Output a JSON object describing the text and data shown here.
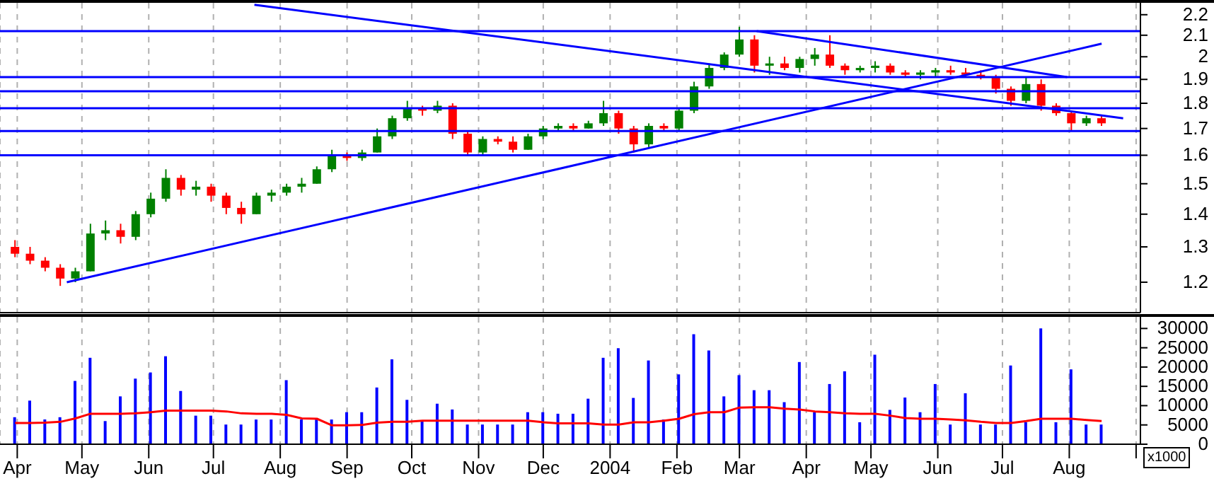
{
  "chart_data": [
    {
      "type": "candlestick",
      "log": true,
      "grid": "x",
      "tick_labels": "y",
      "xlim": [
        "2003-03-24",
        "2004-09-03"
      ],
      "xticks": [
        {
          "value": "2003-04-01",
          "label": null
        },
        {
          "value": "2003-05-01",
          "label": null
        },
        {
          "value": "2003-06-01",
          "label": null
        },
        {
          "value": "2003-07-01",
          "label": null
        },
        {
          "value": "2003-08-01",
          "label": null
        },
        {
          "value": "2003-09-01",
          "label": null
        },
        {
          "value": "2003-10-01",
          "label": null
        },
        {
          "value": "2003-11-01",
          "label": null
        },
        {
          "value": "2003-12-01",
          "label": null
        },
        {
          "value": "2004-01-01",
          "label": null
        },
        {
          "value": "2004-02-01",
          "label": null
        },
        {
          "value": "2004-03-01",
          "label": null
        },
        {
          "value": "2004-04-01",
          "label": null
        },
        {
          "value": "2004-05-01",
          "label": null
        },
        {
          "value": "2004-06-01",
          "label": null
        },
        {
          "value": "2004-07-01",
          "label": null
        },
        {
          "value": "2004-08-01",
          "label": null
        },
        {
          "value": "2004-09-01",
          "label": null
        }
      ],
      "ylim": [
        1.12,
        2.26
      ],
      "yticks": [
        1.2,
        1.3,
        1.4,
        1.5,
        1.6,
        1.7,
        1.8,
        1.9,
        2.0,
        2.1,
        2.2
      ],
      "x": [
        "2003-03-31",
        "2003-04-07",
        "2003-04-14",
        "2003-04-21",
        "2003-04-28",
        "2003-05-05",
        "2003-05-12",
        "2003-05-19",
        "2003-05-26",
        "2003-06-02",
        "2003-06-09",
        "2003-06-16",
        "2003-06-23",
        "2003-06-30",
        "2003-07-07",
        "2003-07-14",
        "2003-07-21",
        "2003-07-28",
        "2003-08-04",
        "2003-08-11",
        "2003-08-18",
        "2003-08-25",
        "2003-09-01",
        "2003-09-08",
        "2003-09-15",
        "2003-09-22",
        "2003-09-29",
        "2003-10-06",
        "2003-10-13",
        "2003-10-20",
        "2003-10-27",
        "2003-11-03",
        "2003-11-10",
        "2003-11-17",
        "2003-11-24",
        "2003-12-01",
        "2003-12-08",
        "2003-12-15",
        "2003-12-22",
        "2003-12-29",
        "2004-01-05",
        "2004-01-12",
        "2004-01-19",
        "2004-01-26",
        "2004-02-02",
        "2004-02-09",
        "2004-02-16",
        "2004-02-23",
        "2004-03-01",
        "2004-03-08",
        "2004-03-15",
        "2004-03-22",
        "2004-03-29",
        "2004-04-05",
        "2004-04-12",
        "2004-04-19",
        "2004-04-26",
        "2004-05-03",
        "2004-05-10",
        "2004-05-17",
        "2004-05-24",
        "2004-05-31",
        "2004-06-07",
        "2004-06-14",
        "2004-06-21",
        "2004-06-28",
        "2004-07-05",
        "2004-07-12",
        "2004-07-19",
        "2004-07-26",
        "2004-08-02",
        "2004-08-09",
        "2004-08-16"
      ],
      "ohlc": [
        [
          1.3,
          1.32,
          1.27,
          1.28
        ],
        [
          1.28,
          1.3,
          1.25,
          1.26
        ],
        [
          1.26,
          1.27,
          1.23,
          1.24
        ],
        [
          1.24,
          1.25,
          1.19,
          1.21
        ],
        [
          1.21,
          1.24,
          1.2,
          1.23
        ],
        [
          1.23,
          1.37,
          1.23,
          1.34
        ],
        [
          1.34,
          1.38,
          1.32,
          1.35
        ],
        [
          1.35,
          1.37,
          1.31,
          1.33
        ],
        [
          1.33,
          1.41,
          1.32,
          1.4
        ],
        [
          1.4,
          1.47,
          1.39,
          1.45
        ],
        [
          1.45,
          1.55,
          1.44,
          1.52
        ],
        [
          1.52,
          1.53,
          1.46,
          1.48
        ],
        [
          1.48,
          1.51,
          1.46,
          1.49
        ],
        [
          1.49,
          1.5,
          1.44,
          1.46
        ],
        [
          1.46,
          1.47,
          1.4,
          1.42
        ],
        [
          1.42,
          1.44,
          1.37,
          1.4
        ],
        [
          1.4,
          1.47,
          1.4,
          1.46
        ],
        [
          1.46,
          1.48,
          1.44,
          1.47
        ],
        [
          1.47,
          1.5,
          1.46,
          1.49
        ],
        [
          1.49,
          1.52,
          1.47,
          1.5
        ],
        [
          1.5,
          1.56,
          1.5,
          1.55
        ],
        [
          1.55,
          1.62,
          1.54,
          1.6
        ],
        [
          1.6,
          1.61,
          1.58,
          1.59
        ],
        [
          1.59,
          1.62,
          1.58,
          1.61
        ],
        [
          1.61,
          1.7,
          1.61,
          1.67
        ],
        [
          1.67,
          1.75,
          1.66,
          1.74
        ],
        [
          1.74,
          1.81,
          1.73,
          1.78
        ],
        [
          1.78,
          1.79,
          1.75,
          1.77
        ],
        [
          1.77,
          1.81,
          1.76,
          1.79
        ],
        [
          1.79,
          1.8,
          1.66,
          1.68
        ],
        [
          1.68,
          1.69,
          1.6,
          1.61
        ],
        [
          1.61,
          1.67,
          1.6,
          1.66
        ],
        [
          1.66,
          1.67,
          1.64,
          1.65
        ],
        [
          1.65,
          1.67,
          1.61,
          1.62
        ],
        [
          1.62,
          1.68,
          1.62,
          1.67
        ],
        [
          1.67,
          1.71,
          1.66,
          1.7
        ],
        [
          1.7,
          1.72,
          1.69,
          1.71
        ],
        [
          1.71,
          1.72,
          1.69,
          1.7
        ],
        [
          1.7,
          1.73,
          1.7,
          1.72
        ],
        [
          1.72,
          1.81,
          1.71,
          1.76
        ],
        [
          1.76,
          1.77,
          1.68,
          1.7
        ],
        [
          1.7,
          1.71,
          1.61,
          1.64
        ],
        [
          1.64,
          1.72,
          1.63,
          1.71
        ],
        [
          1.71,
          1.72,
          1.69,
          1.7
        ],
        [
          1.7,
          1.78,
          1.69,
          1.77
        ],
        [
          1.77,
          1.89,
          1.76,
          1.87
        ],
        [
          1.87,
          1.97,
          1.86,
          1.95
        ],
        [
          1.95,
          2.02,
          1.94,
          2.01
        ],
        [
          2.01,
          2.14,
          2.0,
          2.08
        ],
        [
          2.08,
          2.1,
          1.93,
          1.96
        ],
        [
          1.96,
          2.0,
          1.92,
          1.97
        ],
        [
          1.97,
          2.0,
          1.94,
          1.95
        ],
        [
          1.95,
          2.0,
          1.93,
          1.99
        ],
        [
          1.99,
          2.04,
          1.96,
          2.01
        ],
        [
          2.01,
          2.1,
          1.95,
          1.96
        ],
        [
          1.96,
          1.97,
          1.92,
          1.94
        ],
        [
          1.94,
          1.96,
          1.93,
          1.95
        ],
        [
          1.95,
          1.98,
          1.93,
          1.96
        ],
        [
          1.96,
          1.97,
          1.92,
          1.93
        ],
        [
          1.93,
          1.94,
          1.91,
          1.92
        ],
        [
          1.92,
          1.94,
          1.9,
          1.93
        ],
        [
          1.93,
          1.95,
          1.91,
          1.94
        ],
        [
          1.94,
          1.96,
          1.92,
          1.93
        ],
        [
          1.93,
          1.95,
          1.91,
          1.92
        ],
        [
          1.92,
          1.94,
          1.9,
          1.91
        ],
        [
          1.91,
          1.92,
          1.84,
          1.86
        ],
        [
          1.86,
          1.87,
          1.79,
          1.81
        ],
        [
          1.81,
          1.91,
          1.8,
          1.88
        ],
        [
          1.88,
          1.9,
          1.77,
          1.79
        ],
        [
          1.79,
          1.8,
          1.75,
          1.76
        ],
        [
          1.76,
          1.77,
          1.69,
          1.72
        ],
        [
          1.72,
          1.75,
          1.71,
          1.74
        ],
        [
          1.74,
          1.75,
          1.71,
          1.72
        ]
      ],
      "colors": [
        "#ff0000",
        "#ff0000",
        "#ff0000",
        "#ff0000",
        "#008000",
        "#008000",
        "#008000",
        "#ff0000",
        "#008000",
        "#008000",
        "#008000",
        "#ff0000",
        "#008000",
        "#ff0000",
        "#ff0000",
        "#ff0000",
        "#008000",
        "#008000",
        "#008000",
        "#008000",
        "#008000",
        "#008000",
        "#ff0000",
        "#008000",
        "#008000",
        "#008000",
        "#008000",
        "#ff0000",
        "#008000",
        "#ff0000",
        "#ff0000",
        "#008000",
        "#ff0000",
        "#ff0000",
        "#008000",
        "#008000",
        "#008000",
        "#ff0000",
        "#008000",
        "#008000",
        "#ff0000",
        "#ff0000",
        "#008000",
        "#ff0000",
        "#008000",
        "#008000",
        "#008000",
        "#008000",
        "#008000",
        "#ff0000",
        "#008000",
        "#ff0000",
        "#008000",
        "#008000",
        "#ff0000",
        "#ff0000",
        "#008000",
        "#008000",
        "#ff0000",
        "#ff0000",
        "#008000",
        "#008000",
        "#ff0000",
        "#ff0000",
        "#ff0000",
        "#ff0000",
        "#ff0000",
        "#008000",
        "#ff0000",
        "#ff0000",
        "#ff0000",
        "#008000",
        "#ff0000"
      ],
      "series": [
        {
          "type": "line",
          "color": "#0000ff",
          "x": [
            "2003-07-20",
            "2004-08-26"
          ],
          "values": [
            2.25,
            1.74
          ]
        },
        {
          "type": "line",
          "color": "#0000ff",
          "x": [
            "2003-04-24",
            "2004-08-16"
          ],
          "values": [
            1.2,
            2.06
          ]
        },
        {
          "type": "line",
          "color": "#0000ff",
          "x": [
            "2004-03-09",
            "2004-07-31"
          ],
          "values": [
            2.12,
            1.91
          ]
        }
      ],
      "ref_lines": [
        {
          "axis": "y",
          "value": 2.12,
          "color": "#0000ff"
        },
        {
          "axis": "y",
          "value": 1.91,
          "color": "#0000ff"
        },
        {
          "axis": "y",
          "value": 1.85,
          "color": "#0000ff"
        },
        {
          "axis": "y",
          "value": 1.78,
          "color": "#0000ff"
        },
        {
          "axis": "y",
          "value": 1.69,
          "color": "#0000ff"
        },
        {
          "axis": "y",
          "value": 1.6,
          "color": "#0000ff"
        }
      ]
    },
    {
      "type": "bar",
      "grid": "x",
      "xlim": [
        "2003-03-24",
        "2004-09-03"
      ],
      "xticks": [
        {
          "value": "2003-04-01",
          "label": "Apr"
        },
        {
          "value": "2003-05-01",
          "label": "May"
        },
        {
          "value": "2003-06-01",
          "label": "Jun"
        },
        {
          "value": "2003-07-01",
          "label": "Jul"
        },
        {
          "value": "2003-08-01",
          "label": "Aug"
        },
        {
          "value": "2003-09-01",
          "label": "Sep"
        },
        {
          "value": "2003-10-01",
          "label": "Oct"
        },
        {
          "value": "2003-11-01",
          "label": "Nov"
        },
        {
          "value": "2003-12-01",
          "label": "Dec"
        },
        {
          "value": "2004-01-01",
          "label": "2004"
        },
        {
          "value": "2004-02-01",
          "label": "Feb"
        },
        {
          "value": "2004-03-01",
          "label": "Mar"
        },
        {
          "value": "2004-04-01",
          "label": "Apr"
        },
        {
          "value": "2004-05-01",
          "label": "May"
        },
        {
          "value": "2004-06-01",
          "label": "Jun"
        },
        {
          "value": "2004-07-01",
          "label": "Jul"
        },
        {
          "value": "2004-08-01",
          "label": "Aug"
        },
        {
          "value": "2004-09-01",
          "label": null
        }
      ],
      "ylim": [
        0,
        33000
      ],
      "yticks": [
        0,
        5000,
        10000,
        15000,
        20000,
        25000,
        30000
      ],
      "annotations": [
        "x1000"
      ],
      "x": [
        "2003-03-31",
        "2003-04-07",
        "2003-04-14",
        "2003-04-21",
        "2003-04-28",
        "2003-05-05",
        "2003-05-12",
        "2003-05-19",
        "2003-05-26",
        "2003-06-02",
        "2003-06-09",
        "2003-06-16",
        "2003-06-23",
        "2003-06-30",
        "2003-07-07",
        "2003-07-14",
        "2003-07-21",
        "2003-07-28",
        "2003-08-04",
        "2003-08-11",
        "2003-08-18",
        "2003-08-25",
        "2003-09-01",
        "2003-09-08",
        "2003-09-15",
        "2003-09-22",
        "2003-09-29",
        "2003-10-06",
        "2003-10-13",
        "2003-10-20",
        "2003-10-27",
        "2003-11-03",
        "2003-11-10",
        "2003-11-17",
        "2003-11-24",
        "2003-12-01",
        "2003-12-08",
        "2003-12-15",
        "2003-12-22",
        "2003-12-29",
        "2004-01-05",
        "2004-01-12",
        "2004-01-19",
        "2004-01-26",
        "2004-02-02",
        "2004-02-09",
        "2004-02-16",
        "2004-02-23",
        "2004-03-01",
        "2004-03-08",
        "2004-03-15",
        "2004-03-22",
        "2004-03-29",
        "2004-04-05",
        "2004-04-12",
        "2004-04-19",
        "2004-04-26",
        "2004-05-03",
        "2004-05-10",
        "2004-05-17",
        "2004-05-24",
        "2004-05-31",
        "2004-06-07",
        "2004-06-14",
        "2004-06-21",
        "2004-06-28",
        "2004-07-05",
        "2004-07-12",
        "2004-07-19",
        "2004-07-26",
        "2004-08-02",
        "2004-08-09",
        "2004-08-16"
      ],
      "series": [
        {
          "type": "bar",
          "color": "#0000ff",
          "values": [
            7000,
            11300,
            6400,
            7000,
            16400,
            22400,
            6000,
            12400,
            17000,
            18600,
            22800,
            13800,
            7400,
            7400,
            5100,
            5100,
            6400,
            6400,
            16600,
            6400,
            6400,
            6400,
            8300,
            8300,
            14700,
            22000,
            11500,
            6100,
            10500,
            9000,
            5100,
            5100,
            5100,
            5100,
            8300,
            8300,
            7900,
            7900,
            11800,
            22400,
            24900,
            12000,
            21700,
            6400,
            18100,
            28500,
            24300,
            12400,
            17900,
            14000,
            14000,
            10900,
            21300,
            8300,
            15600,
            18900,
            5700,
            23200,
            8900,
            12100,
            8300,
            15600,
            5100,
            13200,
            5100,
            5100,
            20400,
            5700,
            30000,
            5700,
            19400,
            5100,
            5100
          ]
        },
        {
          "type": "line",
          "color": "#ff0000",
          "values": [
            5500,
            5500,
            5600,
            5800,
            6700,
            7900,
            7900,
            7900,
            8000,
            8300,
            8700,
            8700,
            8700,
            8700,
            8500,
            8000,
            7900,
            7900,
            7600,
            6700,
            6600,
            4900,
            4900,
            5000,
            5600,
            5800,
            5800,
            6100,
            6100,
            6100,
            6100,
            6100,
            6100,
            6100,
            6100,
            5700,
            5400,
            5400,
            5400,
            5100,
            5100,
            5700,
            5700,
            6100,
            6600,
            7800,
            8300,
            8300,
            9500,
            9600,
            9600,
            9200,
            9000,
            8500,
            8300,
            8000,
            7900,
            7900,
            7400,
            6800,
            6600,
            6600,
            6400,
            6200,
            5800,
            5500,
            5500,
            6000,
            6600,
            6600,
            6600,
            6300,
            6000
          ]
        }
      ]
    }
  ]
}
